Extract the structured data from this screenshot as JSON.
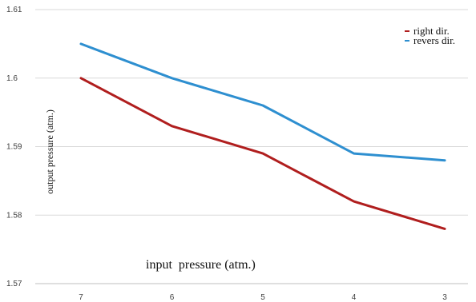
{
  "chart_data": {
    "type": "line",
    "title": "",
    "xlabel": "input  pressure (atm.)",
    "ylabel": "output pressure (atm.)",
    "categories": [
      "7",
      "6",
      "5",
      "4",
      "3"
    ],
    "y_ticks": [
      "1.57",
      "1.58",
      "1.59",
      "1.6",
      "1.61"
    ],
    "ylim": [
      1.57,
      1.61
    ],
    "grid": "horizontal",
    "legend_position": "top-right",
    "series": [
      {
        "name": "right dir.",
        "color": "#b01e1e",
        "values": [
          1.6,
          1.593,
          1.589,
          1.582,
          1.578
        ]
      },
      {
        "name": "revers dir.",
        "color": "#2e8fd0",
        "values": [
          1.605,
          1.6,
          1.596,
          1.589,
          1.588
        ]
      }
    ]
  }
}
